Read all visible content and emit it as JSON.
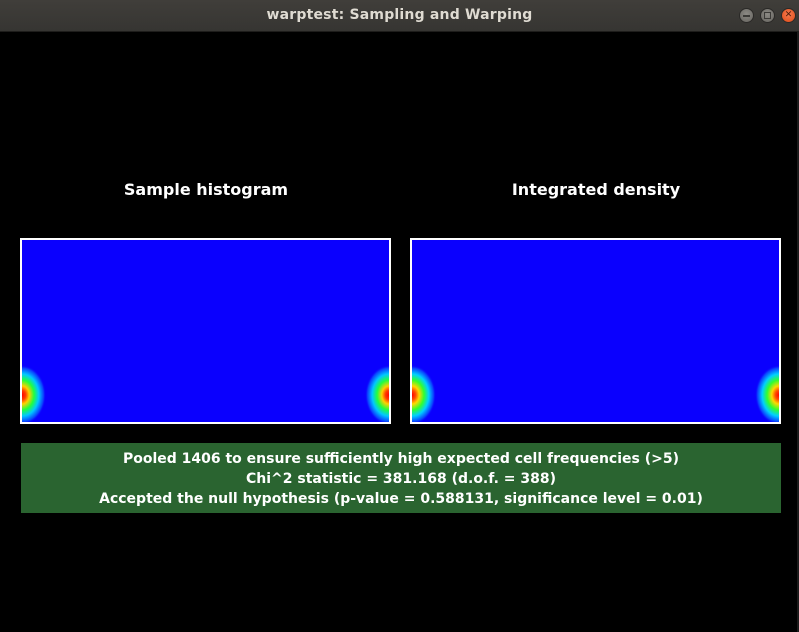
{
  "window": {
    "title": "warptest: Sampling and Warping",
    "buttons": {
      "minimize_icon": "minimize-icon",
      "maximize_icon": "maximize-icon",
      "close_icon": "close-icon"
    }
  },
  "panels": {
    "left_title": "Sample histogram",
    "right_title": "Integrated density"
  },
  "colors": {
    "background": "#000000",
    "heatmap_base": "#0a00fe",
    "result_box": "#2a6430",
    "close_button": "#e95420"
  },
  "result": {
    "line1": "Pooled 1406 to ensure sufficiently high expected cell frequencies (>5)",
    "line2": "Chi^2 statistic = 381.168 (d.o.f. = 388)",
    "line3": "Accepted the null hypothesis (p-value = 0.588131, significance level = 0.01)"
  }
}
